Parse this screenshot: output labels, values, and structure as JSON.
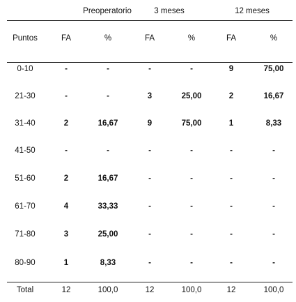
{
  "table": {
    "groups": [
      "Preoperatorio",
      "3 meses",
      "12 meses"
    ],
    "columns": [
      "Puntos",
      "FA",
      "%",
      "FA",
      "%",
      "FA",
      "%"
    ],
    "rows": [
      [
        "0-10",
        "-",
        "-",
        "-",
        "-",
        "9",
        "75,00"
      ],
      [
        "21-30",
        "-",
        "-",
        "3",
        "25,00",
        "2",
        "16,67"
      ],
      [
        "31-40",
        "2",
        "16,67",
        "9",
        "75,00",
        "1",
        "8,33"
      ],
      [
        "41-50",
        "-",
        "-",
        "-",
        "-",
        "-",
        "-"
      ],
      [
        "51-60",
        "2",
        "16,67",
        "-",
        "-",
        "-",
        "-"
      ],
      [
        "61-70",
        "4",
        "33,33",
        "-",
        "-",
        "-",
        "-"
      ],
      [
        "71-80",
        "3",
        "25,00",
        "-",
        "-",
        "-",
        "-"
      ],
      [
        "80-90",
        "1",
        "8,33",
        "-",
        "-",
        "-",
        "-"
      ]
    ],
    "total": [
      "Total",
      "12",
      "100,0",
      "12",
      "100,0",
      "12",
      "100,0"
    ]
  }
}
